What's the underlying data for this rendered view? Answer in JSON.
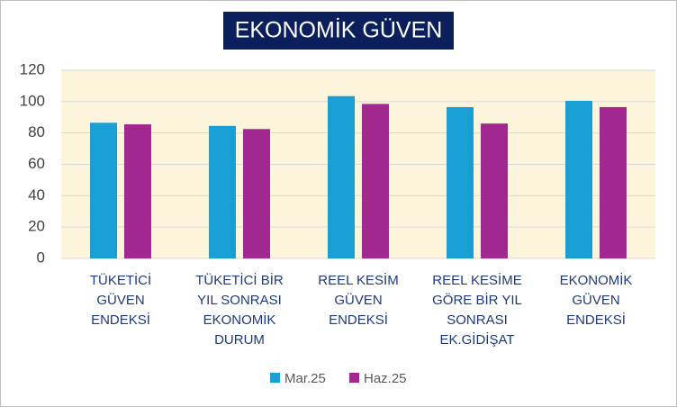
{
  "chart_data": {
    "type": "bar",
    "title": "EKONOMİK GÜVEN",
    "categories": [
      "TÜKETİCİ\nGÜVEN\nENDEKSİ",
      "TÜKETİCİ BİR\nYIL SONRASI\nEKONOMİK\nDURUM",
      "REEL KESİM\nGÜVEN\nENDEKSİ",
      "REEL KESİME\nGÖRE  BİR YIL\nSONRASI\nEK.GİDİŞAT",
      "EKONOMİK\nGÜVEN\nENDEKSİ"
    ],
    "series": [
      {
        "name": "Mar.25",
        "color": "#1a9fd4",
        "values": [
          86.5,
          84.5,
          103.5,
          96.5,
          100.5
        ]
      },
      {
        "name": "Haz.25",
        "color": "#a0288e",
        "values": [
          85.5,
          82.5,
          98.5,
          86,
          96.5
        ]
      }
    ],
    "ylim": [
      0,
      120
    ],
    "yticks": [
      0,
      20,
      40,
      60,
      80,
      100,
      120
    ],
    "grid": true,
    "legend": "bottom"
  }
}
